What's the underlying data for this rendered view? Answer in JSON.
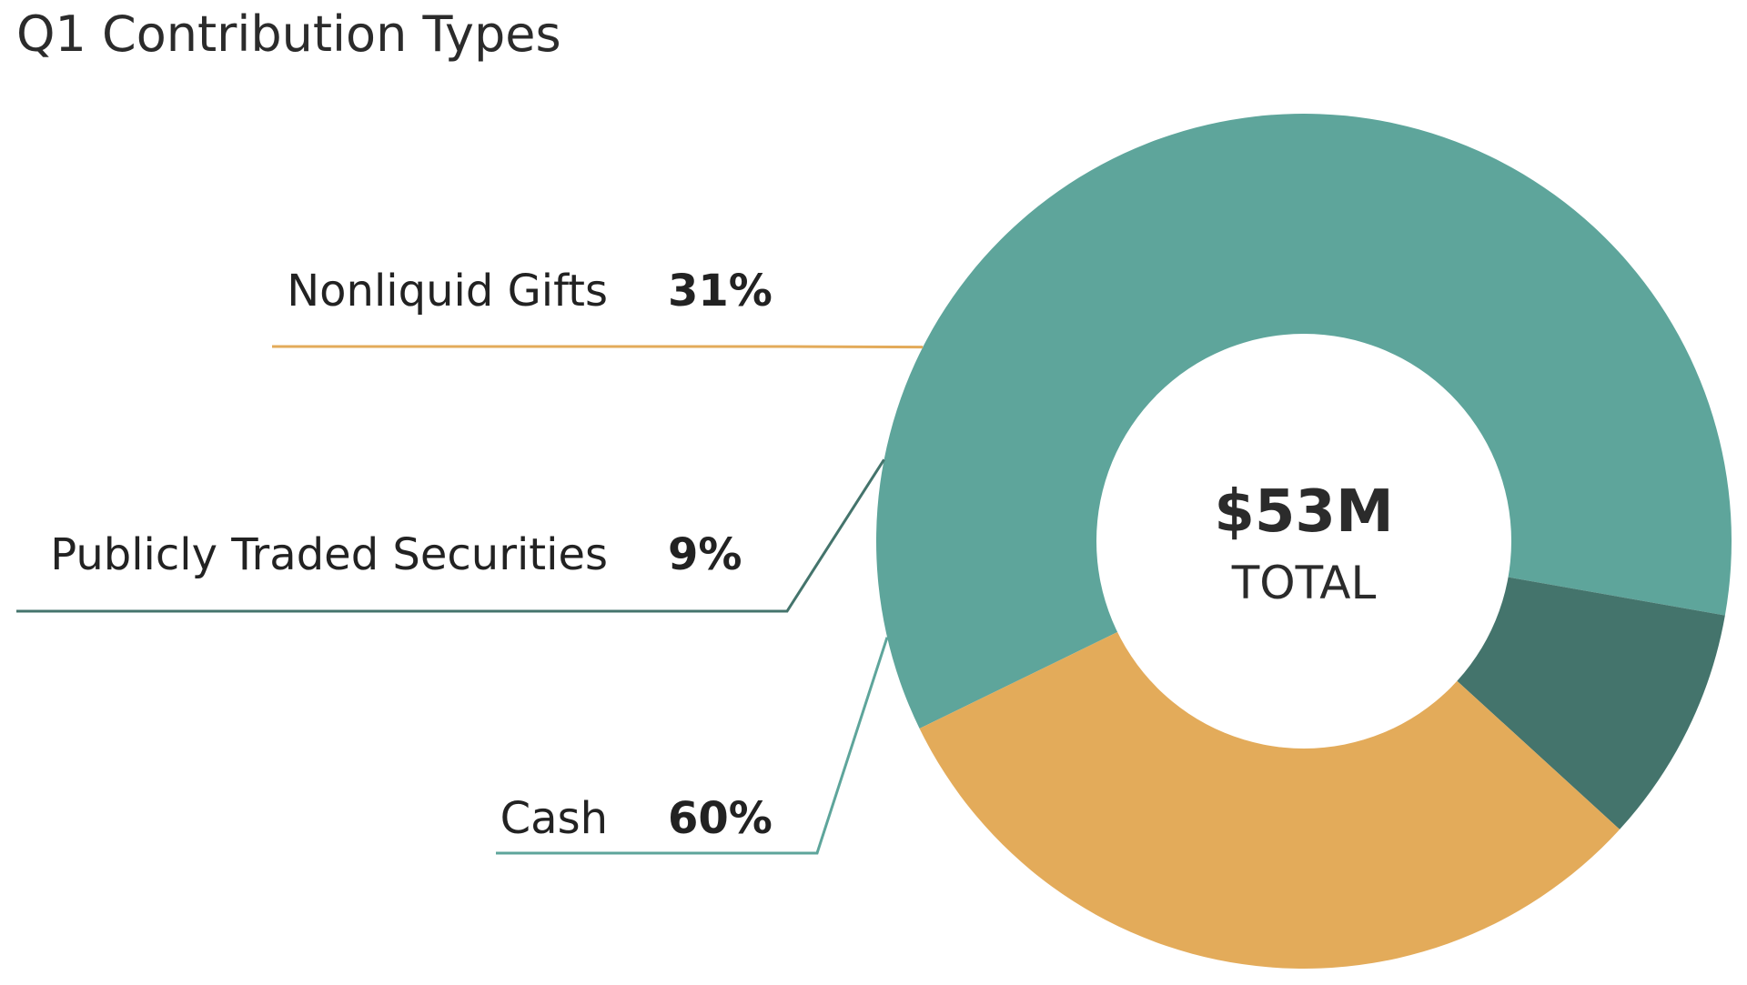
{
  "chart_data": {
    "type": "pie",
    "title": "Q1 Contribution Types",
    "categories": [
      "Cash",
      "Publicly Traded Securities",
      "Nonliquid Gifts"
    ],
    "values": [
      60,
      9,
      31
    ],
    "value_labels": [
      "60%",
      "9%",
      "31%"
    ],
    "unit": "%",
    "colors": [
      "#5ea59b",
      "#44746c",
      "#e3ab5a"
    ],
    "donut": true,
    "center_value": "$53M",
    "center_label": "TOTAL",
    "legend": "none",
    "labels": "callout-lines-left"
  }
}
